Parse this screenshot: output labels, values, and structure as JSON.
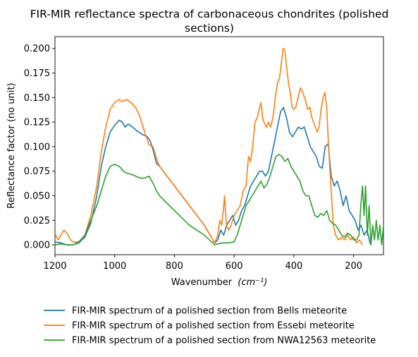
{
  "chart_data": {
    "type": "line",
    "title": "FIR-MIR reflectance spectra of carbonaceous chondrites (polished sections)",
    "title_lines": [
      "FIR-MIR reflectance spectra of carbonaceous chondrites (polished",
      "sections)"
    ],
    "xlabel": "Wavenumber",
    "xlabel_unit": "(cm⁻¹)",
    "ylabel": "Reflectance factor (no unit)",
    "xlim": [
      1200,
      100
    ],
    "x_reversed": true,
    "ylim": [
      -0.01,
      0.212
    ],
    "x_ticks": [
      1200,
      1000,
      800,
      600,
      400,
      200
    ],
    "x_tick_labels": [
      "1200",
      "1000",
      "800",
      "600",
      "400",
      "200"
    ],
    "y_ticks": [
      0.0,
      0.025,
      0.05,
      0.075,
      0.1,
      0.125,
      0.15,
      0.175,
      0.2
    ],
    "y_tick_labels": [
      "0.000",
      "0.025",
      "0.050",
      "0.075",
      "0.100",
      "0.125",
      "0.150",
      "0.175",
      "0.200"
    ],
    "grid": false,
    "legend_position": "below",
    "series": [
      {
        "name": "FIR-MIR spectrum of a polished section from Bells meteorite",
        "color": "#1f77b4",
        "points": [
          [
            1200,
            0.003
          ],
          [
            1180,
            0.002
          ],
          [
            1160,
            0.0
          ],
          [
            1140,
            0.0
          ],
          [
            1120,
            0.002
          ],
          [
            1100,
            0.008
          ],
          [
            1080,
            0.022
          ],
          [
            1060,
            0.05
          ],
          [
            1045,
            0.08
          ],
          [
            1030,
            0.1
          ],
          [
            1015,
            0.115
          ],
          [
            1000,
            0.122
          ],
          [
            985,
            0.127
          ],
          [
            975,
            0.125
          ],
          [
            965,
            0.12
          ],
          [
            955,
            0.123
          ],
          [
            940,
            0.12
          ],
          [
            925,
            0.116
          ],
          [
            905,
            0.112
          ],
          [
            890,
            0.11
          ],
          [
            880,
            0.105
          ],
          [
            870,
            0.095
          ],
          [
            860,
            0.083
          ],
          [
            850,
            0.08
          ],
          [
            800,
            0.06
          ],
          [
            750,
            0.04
          ],
          [
            700,
            0.02
          ],
          [
            665,
            0.002
          ],
          [
            655,
            0.005
          ],
          [
            645,
            0.015
          ],
          [
            635,
            0.01
          ],
          [
            625,
            0.02
          ],
          [
            615,
            0.025
          ],
          [
            605,
            0.03
          ],
          [
            595,
            0.02
          ],
          [
            585,
            0.025
          ],
          [
            575,
            0.035
          ],
          [
            565,
            0.04
          ],
          [
            555,
            0.05
          ],
          [
            545,
            0.06
          ],
          [
            535,
            0.065
          ],
          [
            525,
            0.07
          ],
          [
            515,
            0.075
          ],
          [
            505,
            0.075
          ],
          [
            495,
            0.07
          ],
          [
            485,
            0.075
          ],
          [
            475,
            0.09
          ],
          [
            465,
            0.105
          ],
          [
            455,
            0.12
          ],
          [
            445,
            0.135
          ],
          [
            435,
            0.14
          ],
          [
            425,
            0.13
          ],
          [
            415,
            0.115
          ],
          [
            405,
            0.11
          ],
          [
            395,
            0.115
          ],
          [
            385,
            0.12
          ],
          [
            375,
            0.118
          ],
          [
            365,
            0.12
          ],
          [
            355,
            0.11
          ],
          [
            345,
            0.1
          ],
          [
            335,
            0.095
          ],
          [
            325,
            0.09
          ],
          [
            315,
            0.08
          ],
          [
            305,
            0.078
          ],
          [
            295,
            0.1
          ],
          [
            285,
            0.103
          ],
          [
            275,
            0.07
          ],
          [
            265,
            0.06
          ],
          [
            255,
            0.065
          ],
          [
            245,
            0.055
          ],
          [
            235,
            0.04
          ],
          [
            225,
            0.05
          ],
          [
            215,
            0.035
          ],
          [
            205,
            0.03
          ],
          [
            195,
            0.025
          ],
          [
            185,
            0.015
          ],
          [
            175,
            0.02
          ],
          [
            165,
            0.01
          ],
          [
            155,
            0.015
          ],
          [
            145,
            0.002
          ],
          [
            140,
            0.0
          ]
        ]
      },
      {
        "name": "FIR-MIR spectrum of a polished section from Essebi meteorite",
        "color": "#ff7f0e",
        "points": [
          [
            1200,
            0.012
          ],
          [
            1190,
            0.005
          ],
          [
            1180,
            0.01
          ],
          [
            1170,
            0.015
          ],
          [
            1160,
            0.012
          ],
          [
            1150,
            0.006
          ],
          [
            1140,
            0.003
          ],
          [
            1120,
            0.003
          ],
          [
            1100,
            0.01
          ],
          [
            1080,
            0.03
          ],
          [
            1060,
            0.06
          ],
          [
            1045,
            0.095
          ],
          [
            1030,
            0.12
          ],
          [
            1015,
            0.138
          ],
          [
            1000,
            0.145
          ],
          [
            985,
            0.148
          ],
          [
            975,
            0.146
          ],
          [
            960,
            0.148
          ],
          [
            945,
            0.145
          ],
          [
            930,
            0.14
          ],
          [
            915,
            0.13
          ],
          [
            900,
            0.115
          ],
          [
            885,
            0.102
          ],
          [
            872,
            0.1
          ],
          [
            860,
            0.088
          ],
          [
            850,
            0.08
          ],
          [
            800,
            0.06
          ],
          [
            750,
            0.04
          ],
          [
            700,
            0.02
          ],
          [
            665,
            0.002
          ],
          [
            655,
            0.01
          ],
          [
            648,
            0.025
          ],
          [
            642,
            0.02
          ],
          [
            636,
            0.035
          ],
          [
            632,
            0.05
          ],
          [
            626,
            0.02
          ],
          [
            618,
            0.015
          ],
          [
            610,
            0.02
          ],
          [
            600,
            0.03
          ],
          [
            590,
            0.035
          ],
          [
            580,
            0.04
          ],
          [
            570,
            0.055
          ],
          [
            560,
            0.06
          ],
          [
            552,
            0.09
          ],
          [
            545,
            0.085
          ],
          [
            538,
            0.1
          ],
          [
            530,
            0.125
          ],
          [
            522,
            0.13
          ],
          [
            515,
            0.14
          ],
          [
            510,
            0.145
          ],
          [
            505,
            0.13
          ],
          [
            500,
            0.125
          ],
          [
            492,
            0.12
          ],
          [
            485,
            0.125
          ],
          [
            478,
            0.12
          ],
          [
            470,
            0.13
          ],
          [
            462,
            0.15
          ],
          [
            455,
            0.165
          ],
          [
            448,
            0.17
          ],
          [
            442,
            0.185
          ],
          [
            436,
            0.2
          ],
          [
            430,
            0.198
          ],
          [
            424,
            0.18
          ],
          [
            418,
            0.165
          ],
          [
            412,
            0.155
          ],
          [
            406,
            0.14
          ],
          [
            400,
            0.138
          ],
          [
            394,
            0.14
          ],
          [
            386,
            0.15
          ],
          [
            378,
            0.16
          ],
          [
            370,
            0.155
          ],
          [
            362,
            0.148
          ],
          [
            354,
            0.138
          ],
          [
            346,
            0.14
          ],
          [
            340,
            0.13
          ],
          [
            334,
            0.125
          ],
          [
            328,
            0.12
          ],
          [
            322,
            0.115
          ],
          [
            316,
            0.12
          ],
          [
            308,
            0.14
          ],
          [
            302,
            0.15
          ],
          [
            296,
            0.155
          ],
          [
            290,
            0.14
          ],
          [
            284,
            0.1
          ],
          [
            276,
            0.06
          ],
          [
            268,
            0.02
          ],
          [
            260,
            0.01
          ],
          [
            250,
            0.005
          ],
          [
            240,
            0.008
          ],
          [
            230,
            0.005
          ],
          [
            220,
            0.01
          ],
          [
            210,
            0.005
          ],
          [
            200,
            0.008
          ],
          [
            190,
            0.002
          ],
          [
            180,
            0.005
          ],
          [
            170,
            0.0
          ]
        ]
      },
      {
        "name": "FIR-MIR spectrum of a polished section from NWA12563 meteorite",
        "color": "#2ca02c",
        "points": [
          [
            1200,
            0.0
          ],
          [
            1180,
            0.001
          ],
          [
            1160,
            0.0
          ],
          [
            1140,
            0.0
          ],
          [
            1120,
            0.003
          ],
          [
            1100,
            0.01
          ],
          [
            1080,
            0.025
          ],
          [
            1060,
            0.04
          ],
          [
            1045,
            0.055
          ],
          [
            1030,
            0.07
          ],
          [
            1015,
            0.08
          ],
          [
            1000,
            0.082
          ],
          [
            985,
            0.08
          ],
          [
            970,
            0.075
          ],
          [
            960,
            0.073
          ],
          [
            945,
            0.072
          ],
          [
            930,
            0.07
          ],
          [
            915,
            0.068
          ],
          [
            900,
            0.068
          ],
          [
            885,
            0.07
          ],
          [
            870,
            0.062
          ],
          [
            860,
            0.055
          ],
          [
            850,
            0.05
          ],
          [
            800,
            0.035
          ],
          [
            750,
            0.02
          ],
          [
            700,
            0.01
          ],
          [
            665,
            0.0
          ],
          [
            655,
            0.001
          ],
          [
            640,
            0.002
          ],
          [
            620,
            0.002
          ],
          [
            600,
            0.003
          ],
          [
            590,
            0.01
          ],
          [
            580,
            0.02
          ],
          [
            570,
            0.03
          ],
          [
            560,
            0.04
          ],
          [
            550,
            0.045
          ],
          [
            540,
            0.05
          ],
          [
            530,
            0.055
          ],
          [
            520,
            0.06
          ],
          [
            510,
            0.065
          ],
          [
            500,
            0.058
          ],
          [
            490,
            0.062
          ],
          [
            480,
            0.07
          ],
          [
            470,
            0.08
          ],
          [
            460,
            0.09
          ],
          [
            450,
            0.092
          ],
          [
            440,
            0.09
          ],
          [
            430,
            0.085
          ],
          [
            420,
            0.088
          ],
          [
            410,
            0.08
          ],
          [
            400,
            0.075
          ],
          [
            390,
            0.07
          ],
          [
            380,
            0.065
          ],
          [
            370,
            0.055
          ],
          [
            360,
            0.05
          ],
          [
            350,
            0.05
          ],
          [
            340,
            0.04
          ],
          [
            330,
            0.03
          ],
          [
            320,
            0.028
          ],
          [
            310,
            0.032
          ],
          [
            300,
            0.03
          ],
          [
            290,
            0.035
          ],
          [
            280,
            0.025
          ],
          [
            270,
            0.022
          ],
          [
            260,
            0.02
          ],
          [
            250,
            0.015
          ],
          [
            240,
            0.01
          ],
          [
            230,
            0.008
          ],
          [
            220,
            0.012
          ],
          [
            210,
            0.01
          ],
          [
            200,
            0.005
          ],
          [
            190,
            0.005
          ],
          [
            182,
            0.01
          ],
          [
            176,
            0.04
          ],
          [
            170,
            0.06
          ],
          [
            165,
            0.03
          ],
          [
            160,
            0.06
          ],
          [
            154,
            0.01
          ],
          [
            148,
            0.04
          ],
          [
            142,
            0.0
          ],
          [
            136,
            0.02
          ],
          [
            130,
            0.005
          ],
          [
            124,
            0.025
          ],
          [
            118,
            0.005
          ],
          [
            112,
            0.02
          ],
          [
            106,
            0.0
          ],
          [
            100,
            0.02
          ]
        ]
      }
    ]
  }
}
